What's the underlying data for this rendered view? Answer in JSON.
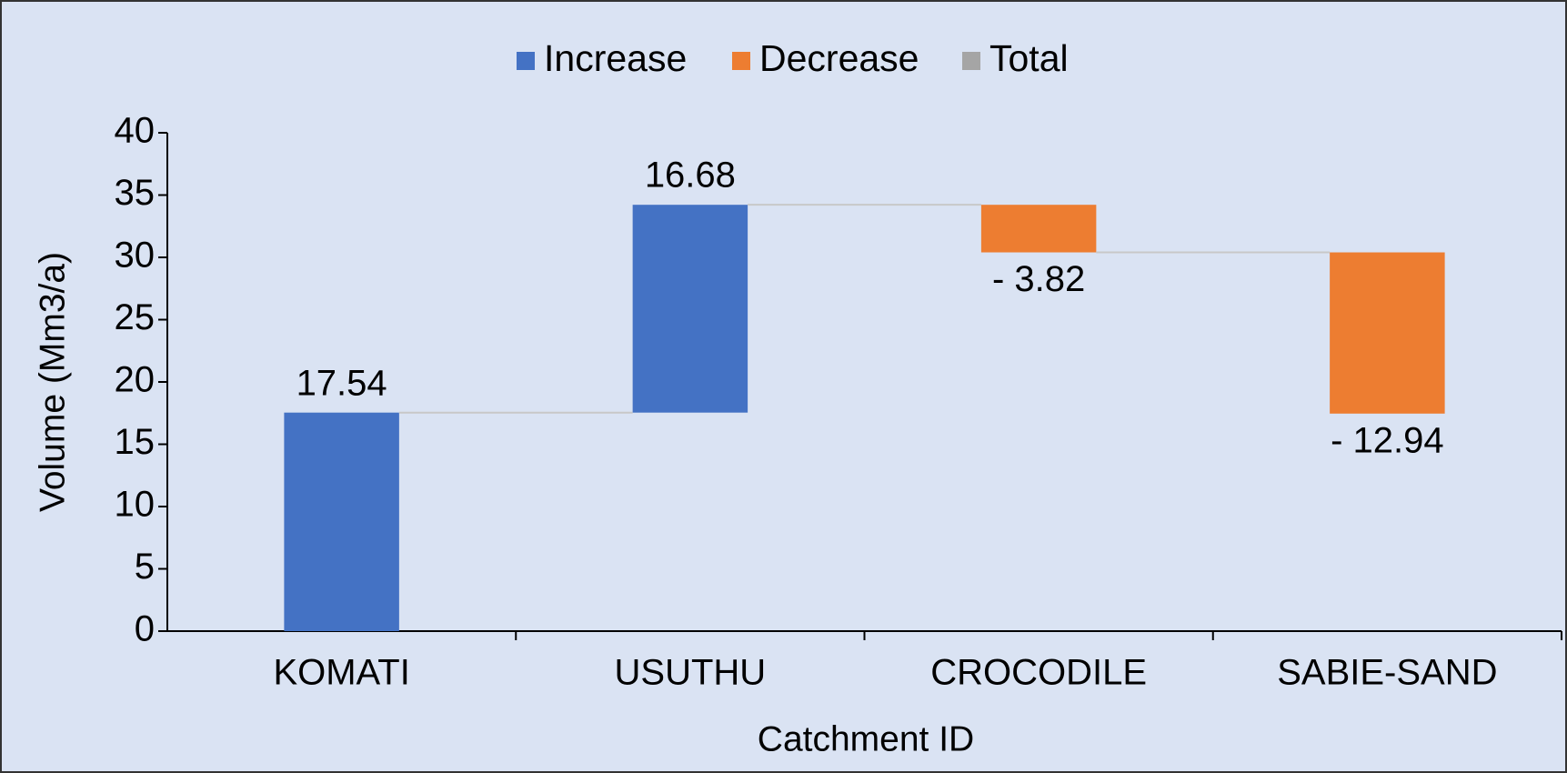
{
  "chart_data": {
    "type": "waterfall",
    "xlabel": "Catchment ID",
    "ylabel": "Volume (Mm3/a)",
    "categories": [
      "KOMATI",
      "USUTHU",
      "CROCODILE",
      "SABIE-SAND"
    ],
    "values": [
      17.54,
      16.68,
      -3.82,
      -12.94
    ],
    "value_labels": [
      "17.54",
      "16.68",
      "- 3.82",
      "- 12.94"
    ],
    "legend": [
      {
        "name": "Increase",
        "color": "#4472c4"
      },
      {
        "name": "Decrease",
        "color": "#ed7d31"
      },
      {
        "name": "Total",
        "color": "#a5a5a5"
      }
    ],
    "ylim": [
      0,
      40
    ],
    "yticks": [
      0,
      5,
      10,
      15,
      20,
      25,
      30,
      35,
      40
    ],
    "grid": false
  }
}
